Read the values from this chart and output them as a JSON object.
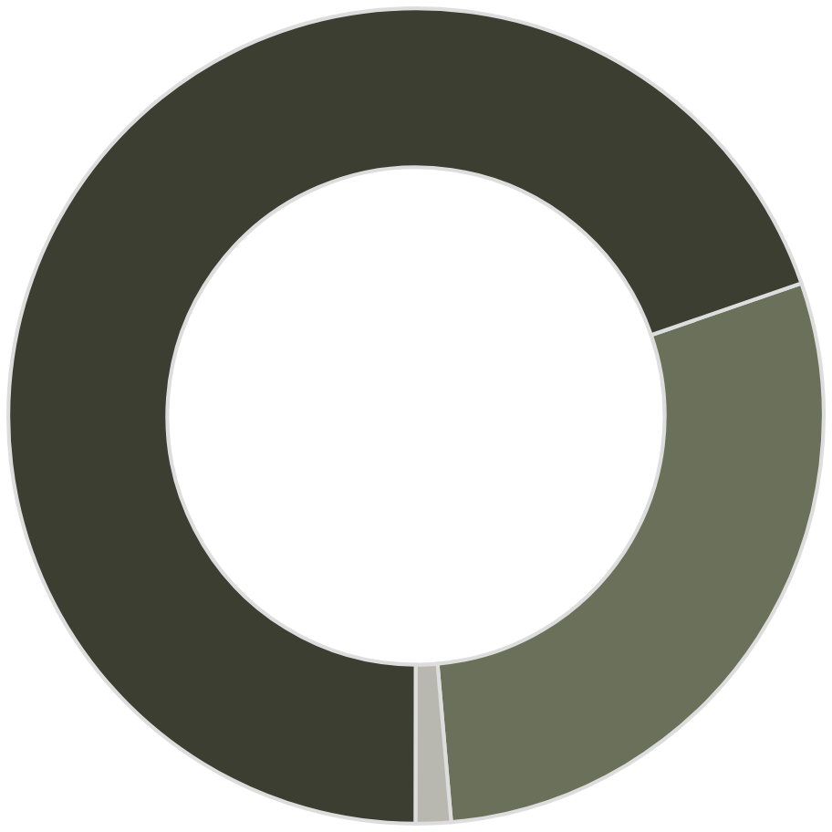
{
  "chart_data": {
    "type": "donut",
    "categories": [
      null,
      null,
      null
    ],
    "values": [
      28.9,
      1.4,
      69.7
    ],
    "colors": [
      "#6b705a",
      "#b9b8b0",
      "#3b3e31"
    ]
  }
}
